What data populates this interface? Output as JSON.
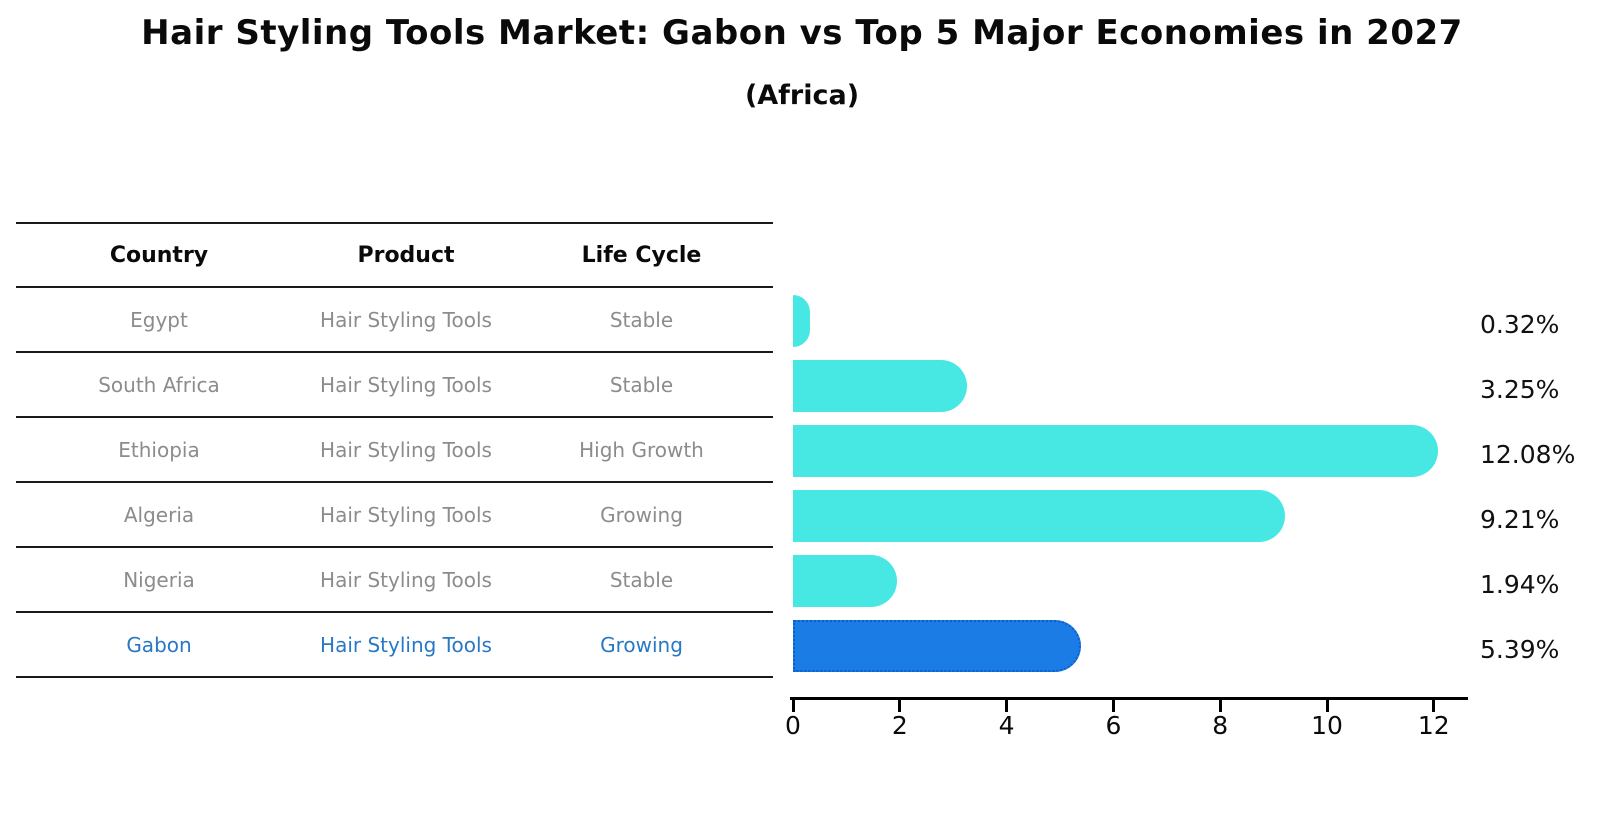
{
  "title": "Hair Styling Tools Market: Gabon vs Top 5 Major Economies in 2027",
  "subtitle": "(Africa)",
  "table": {
    "headers": [
      "Country",
      "Product",
      "Life Cycle"
    ],
    "rows": [
      {
        "country": "Egypt",
        "product": "Hair Styling Tools",
        "life_cycle": "Stable",
        "value_label": "0.32%",
        "highlight": false
      },
      {
        "country": "South Africa",
        "product": "Hair Styling Tools",
        "life_cycle": "Stable",
        "value_label": "3.25%",
        "highlight": false
      },
      {
        "country": "Ethiopia",
        "product": "Hair Styling Tools",
        "life_cycle": "High Growth",
        "value_label": "12.08%",
        "highlight": false
      },
      {
        "country": "Algeria",
        "product": "Hair Styling Tools",
        "life_cycle": "Growing",
        "value_label": "9.21%",
        "highlight": false
      },
      {
        "country": "Nigeria",
        "product": "Hair Styling Tools",
        "life_cycle": "Stable",
        "value_label": "1.94%",
        "highlight": false
      },
      {
        "country": "Gabon",
        "product": "Hair Styling Tools",
        "life_cycle": "Growing",
        "value_label": "5.39%",
        "highlight": true
      }
    ]
  },
  "chart_data": {
    "type": "bar",
    "orientation": "horizontal",
    "title": "Hair Styling Tools Market: Gabon vs Top 5 Major Economies in 2027",
    "subtitle": "(Africa)",
    "categories": [
      "Egypt",
      "South Africa",
      "Ethiopia",
      "Algeria",
      "Nigeria",
      "Gabon"
    ],
    "values": [
      0.32,
      3.25,
      12.08,
      9.21,
      1.94,
      5.39
    ],
    "value_labels": [
      "0.32%",
      "3.25%",
      "12.08%",
      "9.21%",
      "1.94%",
      "5.39%"
    ],
    "xlabel": "",
    "ylabel": "",
    "xticks": [
      0,
      2,
      4,
      6,
      8,
      10,
      12
    ],
    "xlim": [
      0,
      12.7
    ],
    "grid": false,
    "legend": "none",
    "highlight_index": 5,
    "colors": {
      "bar": "#47E7E3",
      "highlight_bar": "#1B7CE5",
      "highlight_border": "#0E5FCC",
      "highlight_text": "#2878C4",
      "row_text": "#8C8C8C",
      "header_text": "#0A0A0A",
      "line": "#1A1A1A",
      "axis": "#000000",
      "value_text": "#111111"
    }
  }
}
